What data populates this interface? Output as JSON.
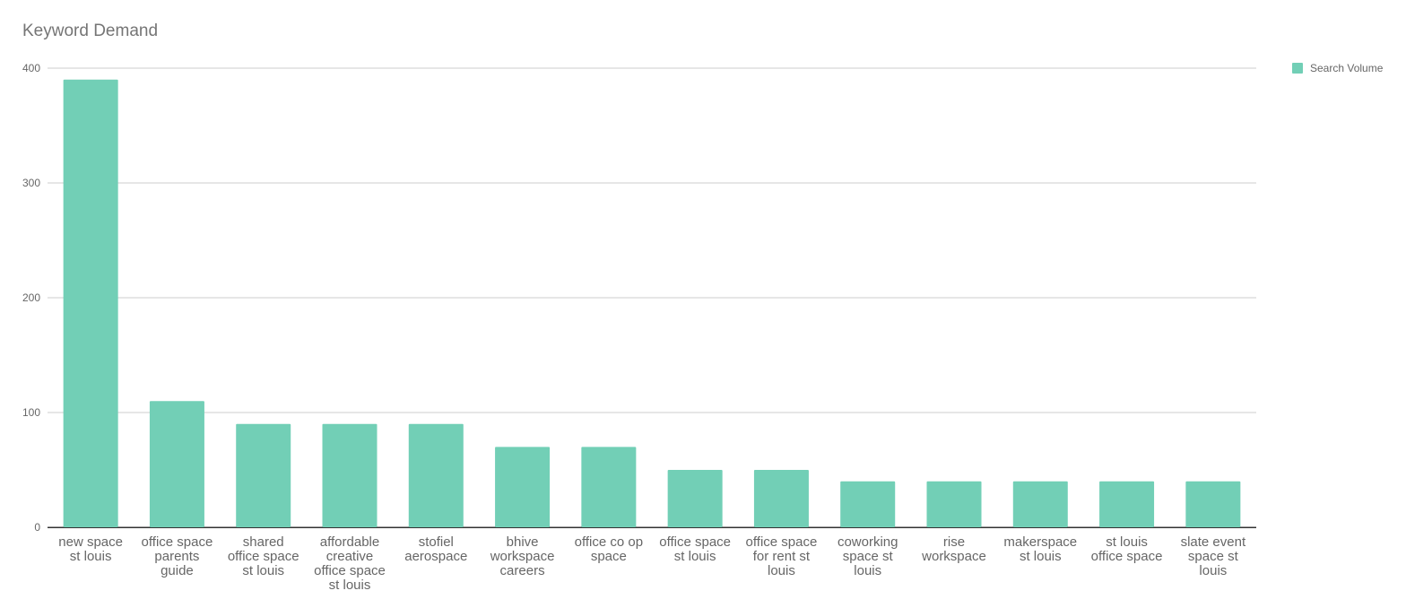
{
  "chart_data": {
    "type": "bar",
    "title": "Keyword Demand",
    "xlabel": "",
    "ylabel": "",
    "ylim": [
      0,
      400
    ],
    "yticks": [
      0,
      100,
      200,
      300,
      400
    ],
    "grid": true,
    "legend_position": "right",
    "bar_color": "#72cfb6",
    "categories": [
      [
        "new space",
        "st louis"
      ],
      [
        "office space",
        "parents",
        "guide"
      ],
      [
        "shared",
        "office space",
        "st louis"
      ],
      [
        "affordable",
        "creative",
        "office space",
        "st louis"
      ],
      [
        "stofiel",
        "aerospace"
      ],
      [
        "bhive",
        "workspace",
        "careers"
      ],
      [
        "office co op",
        "space"
      ],
      [
        "office space",
        "st louis"
      ],
      [
        "office space",
        "for rent st",
        "louis"
      ],
      [
        "coworking",
        "space st",
        "louis"
      ],
      [
        "rise",
        "workspace"
      ],
      [
        "makerspace",
        "st louis"
      ],
      [
        "st louis",
        "office space"
      ],
      [
        "slate event",
        "space st",
        "louis"
      ]
    ],
    "series": [
      {
        "name": "Search Volume",
        "values": [
          390,
          110,
          90,
          90,
          90,
          70,
          70,
          50,
          50,
          40,
          40,
          40,
          40,
          40
        ]
      }
    ]
  }
}
